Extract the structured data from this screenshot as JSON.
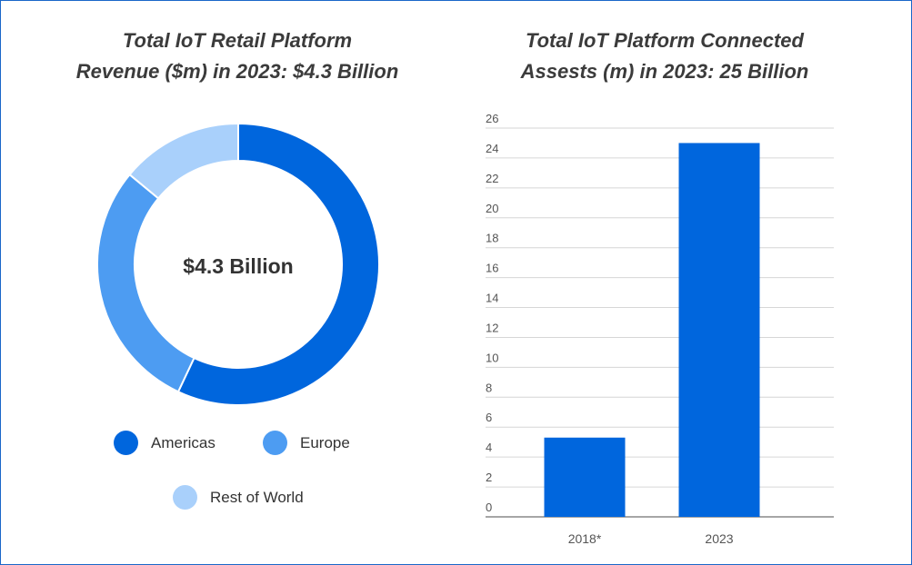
{
  "chart_data": [
    {
      "type": "pie",
      "title_lines": [
        "Total IoT Retail Platform",
        "Revenue ($m) in 2023: $4.3 Billion"
      ],
      "center_label": "$4.3 Billion",
      "categories": [
        "Americas",
        "Europe",
        "Rest of World"
      ],
      "values": [
        57,
        29,
        14
      ],
      "colors": [
        "#0066dd",
        "#4d9cf2",
        "#a9d0fb"
      ],
      "legend_position": "bottom"
    },
    {
      "type": "bar",
      "title_lines": [
        "Total IoT Platform Connected",
        "Assests (m) in 2023: 25 Billion"
      ],
      "categories": [
        "2018*",
        "2023"
      ],
      "values": [
        5.3,
        25
      ],
      "ylim": [
        0,
        26
      ],
      "yticks": [
        "0",
        "2",
        "4",
        "6",
        "8",
        "10",
        "12",
        "14",
        "16",
        "18",
        "20",
        "22",
        "24",
        "26"
      ],
      "ytick_values": [
        0,
        2,
        4,
        6,
        8,
        10,
        12,
        14,
        16,
        18,
        20,
        22,
        24,
        26
      ],
      "grid": true,
      "bar_color": "#0066dd",
      "xlabel": "",
      "ylabel": ""
    }
  ]
}
